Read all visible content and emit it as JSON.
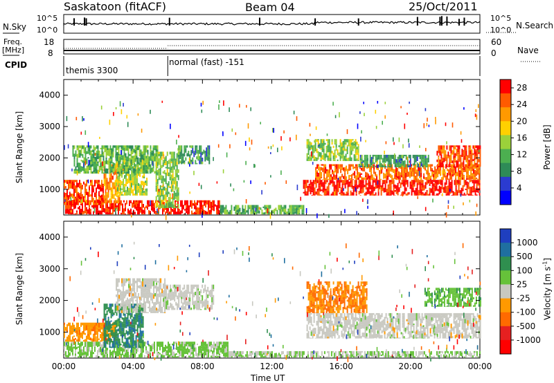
{
  "header": {
    "station": "Saskatoon (fitACF)",
    "beam": "Beam 04",
    "date": "25/Oct/2011"
  },
  "noise_panel": {
    "left_label": "N.Sky",
    "right_label": "N.Search",
    "left_ticks": [
      "10^5",
      "10^0"
    ],
    "right_ticks": [
      "10^5",
      "10^0"
    ]
  },
  "freq_panel": {
    "left_label_1": "Freq.",
    "left_label_2": "[MHz]",
    "left_ticks": [
      "18",
      "8"
    ],
    "right_label": "Nave",
    "right_ticks": [
      "60",
      "0"
    ]
  },
  "cpid_panel": {
    "label": "CPID",
    "modes": [
      {
        "text": "themis 3300",
        "start_hour": 0
      },
      {
        "text": "normal (fast) -151",
        "start_hour": 6
      }
    ]
  },
  "colors": {
    "power_scale": [
      "#0000ff",
      "#2b3bd0",
      "#2e8b57",
      "#4caf50",
      "#9bd13a",
      "#ffd000",
      "#ff9900",
      "#ff5a00",
      "#ff0000"
    ],
    "velocity_scale": [
      "#1f3fbf",
      "#1f6fa0",
      "#2f8f4f",
      "#66c23a",
      "#c8c8c0",
      "#ff9900",
      "#ff6a00",
      "#e62020",
      "#ff0000"
    ]
  },
  "chart_data": [
    {
      "type": "heatmap",
      "panel": "power",
      "ylabel": "Slant Range [km]",
      "ylim": [
        180,
        4500
      ],
      "yticks": [
        "1000",
        "2000",
        "3000",
        "4000"
      ],
      "xlim": [
        0,
        24
      ],
      "xticks": [
        "00:00",
        "04:00",
        "08:00",
        "12:00",
        "16:00",
        "20:00",
        "00:00"
      ],
      "colorbar": {
        "label": "Power [dB]",
        "ticks": [
          "4",
          "8",
          "12",
          "16",
          "20",
          "24",
          "28"
        ],
        "range": [
          0,
          30
        ]
      },
      "regions": [
        {
          "t0": 0.0,
          "t1": 9.0,
          "r0": 200,
          "r1": 650,
          "v": 28
        },
        {
          "t0": 0.0,
          "t1": 2.3,
          "r0": 500,
          "r1": 1300,
          "v": 26
        },
        {
          "t0": 2.3,
          "t1": 3.2,
          "r0": 550,
          "r1": 1800,
          "v": 22
        },
        {
          "t0": 3.0,
          "t1": 4.8,
          "r0": 800,
          "r1": 2000,
          "v": 16
        },
        {
          "t0": 0.5,
          "t1": 5.5,
          "r0": 1500,
          "r1": 2400,
          "v": 12
        },
        {
          "t0": 5.3,
          "t1": 6.6,
          "r0": 400,
          "r1": 2200,
          "v": 14
        },
        {
          "t0": 6.6,
          "t1": 8.4,
          "r0": 1800,
          "r1": 2400,
          "v": 10
        },
        {
          "t0": 9.0,
          "t1": 13.8,
          "r0": 200,
          "r1": 500,
          "v": 12
        },
        {
          "t0": 13.8,
          "t1": 24.0,
          "r0": 800,
          "r1": 1300,
          "v": 28
        },
        {
          "t0": 14.5,
          "t1": 24.0,
          "r0": 1300,
          "r1": 1800,
          "v": 24
        },
        {
          "t0": 14.0,
          "t1": 17.0,
          "r0": 1900,
          "r1": 2600,
          "v": 14
        },
        {
          "t0": 17.0,
          "t1": 21.0,
          "r0": 1700,
          "r1": 2100,
          "v": 10
        },
        {
          "t0": 21.5,
          "t1": 24.0,
          "r0": 1700,
          "r1": 2400,
          "v": 26
        }
      ],
      "scatter_density": 0.35
    },
    {
      "type": "heatmap",
      "panel": "velocity",
      "ylabel": "Slant Range [km]",
      "ylim": [
        180,
        4500
      ],
      "yticks": [
        "1000",
        "2000",
        "3000",
        "4000"
      ],
      "xlim": [
        0,
        24
      ],
      "xticks": [
        "00:00",
        "04:00",
        "08:00",
        "12:00",
        "16:00",
        "20:00",
        "00:00"
      ],
      "xlabel": "Time UT",
      "colorbar": {
        "label": "Velocity [m s",
        "label_superscript": "-1",
        "label_close": "]",
        "ticks": [
          "1000",
          "500",
          "100",
          "25",
          "-25",
          "-100",
          "-500",
          "-1000"
        ],
        "range": [
          -1200,
          1200
        ]
      },
      "regions": [
        {
          "t0": 0.0,
          "t1": 9.5,
          "r0": 200,
          "r1": 700,
          "v": 200
        },
        {
          "t0": 0.0,
          "t1": 3.0,
          "r0": 700,
          "r1": 1300,
          "v": -300
        },
        {
          "t0": 2.3,
          "t1": 4.6,
          "r0": 500,
          "r1": 1900,
          "v": 600
        },
        {
          "t0": 3.0,
          "t1": 5.8,
          "r0": 1600,
          "r1": 2700,
          "v": 0
        },
        {
          "t0": 5.8,
          "t1": 8.6,
          "r0": 1700,
          "r1": 2500,
          "v": 20
        },
        {
          "t0": 9.5,
          "t1": 24.0,
          "r0": 200,
          "r1": 400,
          "v": 120
        },
        {
          "t0": 14.0,
          "t1": 24.0,
          "r0": 800,
          "r1": 1600,
          "v": 5
        },
        {
          "t0": 14.0,
          "t1": 17.5,
          "r0": 1600,
          "r1": 2600,
          "v": -400
        },
        {
          "t0": 20.8,
          "t1": 24.0,
          "r0": 1800,
          "r1": 2400,
          "v": 300
        }
      ],
      "scatter_density": 0.33
    }
  ]
}
